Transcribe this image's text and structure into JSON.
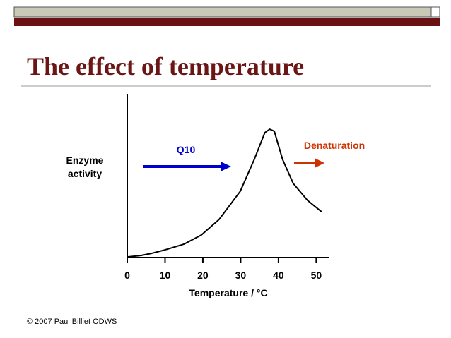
{
  "header": {
    "title": "The effect of temperature"
  },
  "footer": "© 2007 Paul Billiet ODWS",
  "chart_data": {
    "type": "line",
    "xlabel": "Temperature / °C",
    "ylabel": [
      "Enzyme",
      "activity"
    ],
    "annotations": [
      "Q10",
      "Denaturation"
    ],
    "x": [
      0,
      3.7,
      6.5,
      10,
      15,
      19.6,
      24.3,
      29.9,
      33.6,
      36.4,
      37.7,
      38.9,
      41.1,
      43.9,
      47.7,
      51.4
    ],
    "series": [
      {
        "color": "#000000",
        "values": [
          0.4,
          1.3,
          2.6,
          4.7,
          8.2,
          13.8,
          23.3,
          40.5,
          59.9,
          76.3,
          78.4,
          77.2,
          59.9,
          45.3,
          34.9,
          28.0
        ]
      }
    ],
    "xlim": [
      0,
      53.3
    ],
    "xticks": [
      0,
      10,
      20,
      30,
      40,
      50
    ],
    "ylim": [
      0,
      100
    ],
    "yticks": []
  }
}
